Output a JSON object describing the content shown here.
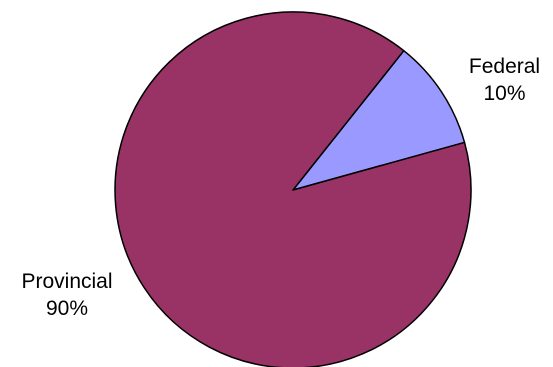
{
  "chart_data": {
    "type": "pie",
    "title": "",
    "slices": [
      {
        "label": "Federal",
        "value": 10,
        "value_label": "10%",
        "color": "#9999ff"
      },
      {
        "label": "Provincial",
        "value": 90,
        "value_label": "90%",
        "color": "#993366"
      }
    ],
    "outline_color": "#000000",
    "legend": "none"
  }
}
